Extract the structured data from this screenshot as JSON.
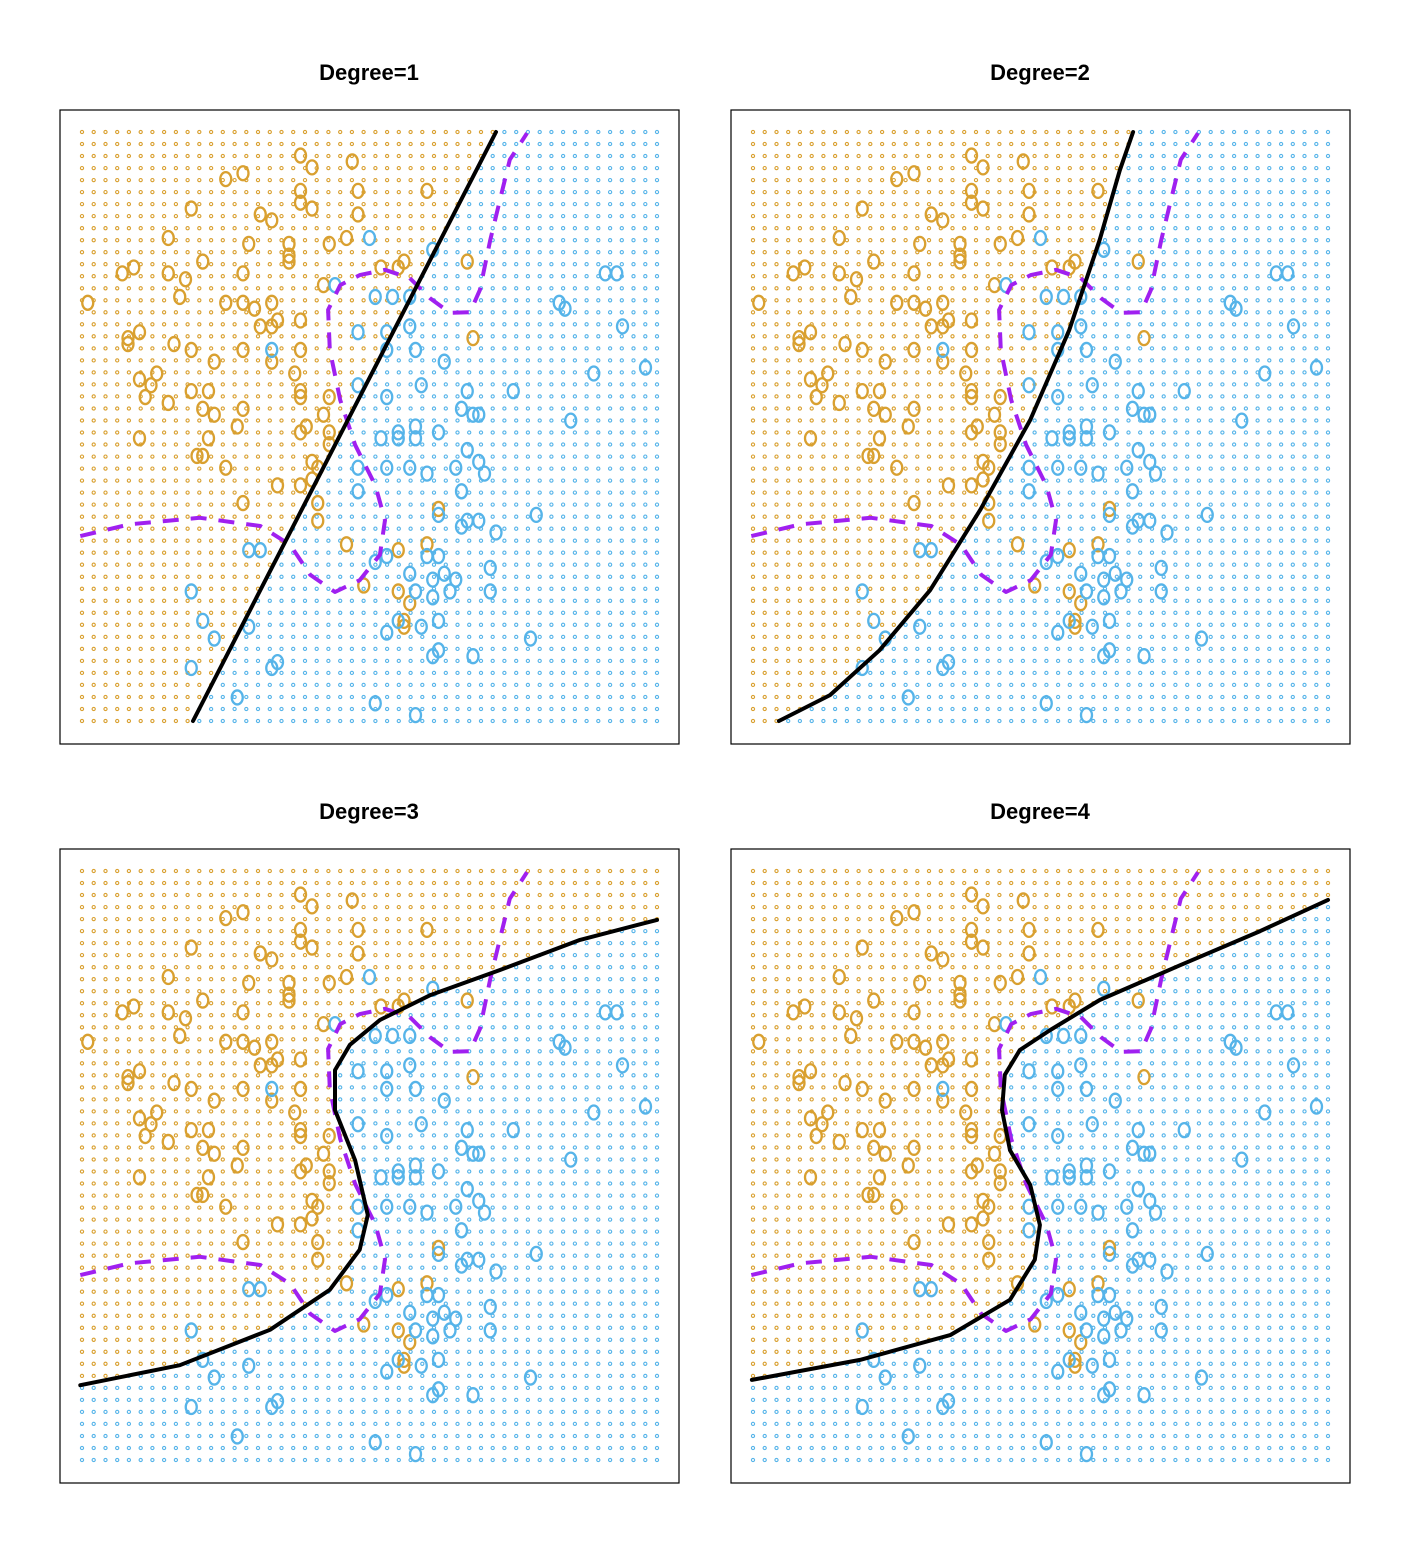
{
  "colors": {
    "orange": "#D9A030",
    "blue": "#56B4E9",
    "bayes": "#A020F0",
    "boundary": "#000000"
  },
  "chart_data": {
    "type": "scatter",
    "xlim": [
      0,
      100
    ],
    "ylim": [
      0,
      100
    ],
    "grid": {
      "nx": 50,
      "ny": 50
    },
    "classes": [
      {
        "name": "orange",
        "points": [
          [
            38,
            96
          ],
          [
            47,
            95
          ],
          [
            28,
            93
          ],
          [
            25,
            92
          ],
          [
            40,
            94
          ],
          [
            38,
            90
          ],
          [
            38,
            88
          ],
          [
            48,
            90
          ],
          [
            60,
            90
          ],
          [
            19,
            87
          ],
          [
            31,
            86
          ],
          [
            33,
            85
          ],
          [
            40,
            87
          ],
          [
            48,
            86
          ],
          [
            15,
            82
          ],
          [
            29,
            81
          ],
          [
            36,
            81
          ],
          [
            43,
            81
          ],
          [
            46,
            82
          ],
          [
            36,
            79
          ],
          [
            36,
            78
          ],
          [
            21,
            78
          ],
          [
            9,
            77
          ],
          [
            7,
            76
          ],
          [
            15,
            76
          ],
          [
            18,
            75
          ],
          [
            28,
            76
          ],
          [
            42,
            74
          ],
          [
            17,
            72
          ],
          [
            1,
            71
          ],
          [
            25,
            71
          ],
          [
            28,
            71
          ],
          [
            30,
            70
          ],
          [
            38,
            68
          ],
          [
            31,
            67
          ],
          [
            33,
            67
          ],
          [
            34,
            68
          ],
          [
            10,
            66
          ],
          [
            8,
            65
          ],
          [
            8,
            64
          ],
          [
            16,
            64
          ],
          [
            28,
            63
          ],
          [
            19,
            63
          ],
          [
            38,
            63
          ],
          [
            33,
            61
          ],
          [
            23,
            61
          ],
          [
            13,
            59
          ],
          [
            10,
            58
          ],
          [
            12,
            57
          ],
          [
            37,
            59
          ],
          [
            19,
            56
          ],
          [
            22,
            56
          ],
          [
            11,
            55
          ],
          [
            15,
            54
          ],
          [
            21,
            53
          ],
          [
            23,
            52
          ],
          [
            28,
            53
          ],
          [
            38,
            56
          ],
          [
            38,
            55
          ],
          [
            43,
            55
          ],
          [
            38,
            49
          ],
          [
            22,
            48
          ],
          [
            27,
            50
          ],
          [
            10,
            48
          ],
          [
            20,
            45
          ],
          [
            21,
            45
          ],
          [
            42,
            52
          ],
          [
            39,
            50
          ],
          [
            43,
            49
          ],
          [
            43,
            47
          ],
          [
            40,
            44
          ],
          [
            25,
            43
          ],
          [
            41,
            43
          ],
          [
            40,
            41
          ],
          [
            38,
            40
          ],
          [
            34,
            40
          ],
          [
            28,
            37
          ],
          [
            41,
            37
          ],
          [
            41,
            34
          ],
          [
            62,
            36
          ],
          [
            46,
            30
          ],
          [
            60,
            30
          ],
          [
            55,
            29
          ],
          [
            49,
            23
          ],
          [
            55,
            22
          ],
          [
            57,
            20
          ],
          [
            56,
            17
          ],
          [
            56,
            16
          ],
          [
            68,
            65
          ],
          [
            67,
            78
          ],
          [
            56,
            78
          ],
          [
            55,
            77
          ],
          [
            52,
            77
          ],
          [
            33,
            71
          ]
        ]
      },
      {
        "name": "blue",
        "points": [
          [
            50,
            82
          ],
          [
            61,
            80
          ],
          [
            44,
            74
          ],
          [
            51,
            72
          ],
          [
            54,
            72
          ],
          [
            57,
            72
          ],
          [
            91,
            76
          ],
          [
            93,
            76
          ],
          [
            83,
            71
          ],
          [
            84,
            70
          ],
          [
            94,
            67
          ],
          [
            48,
            66
          ],
          [
            53,
            66
          ],
          [
            57,
            67
          ],
          [
            33,
            63
          ],
          [
            53,
            63
          ],
          [
            58,
            63
          ],
          [
            63,
            61
          ],
          [
            89,
            59
          ],
          [
            98,
            60
          ],
          [
            48,
            57
          ],
          [
            53,
            55
          ],
          [
            59,
            57
          ],
          [
            67,
            56
          ],
          [
            75,
            56
          ],
          [
            66,
            53
          ],
          [
            68,
            52
          ],
          [
            69,
            52
          ],
          [
            85,
            51
          ],
          [
            52,
            48
          ],
          [
            55,
            49
          ],
          [
            55,
            48
          ],
          [
            58,
            50
          ],
          [
            58,
            48
          ],
          [
            62,
            49
          ],
          [
            67,
            46
          ],
          [
            48,
            43
          ],
          [
            53,
            43
          ],
          [
            57,
            43
          ],
          [
            60,
            42
          ],
          [
            65,
            43
          ],
          [
            69,
            44
          ],
          [
            70,
            42
          ],
          [
            48,
            39
          ],
          [
            66,
            39
          ],
          [
            62,
            35
          ],
          [
            66,
            33
          ],
          [
            67,
            34
          ],
          [
            69,
            34
          ],
          [
            79,
            35
          ],
          [
            72,
            32
          ],
          [
            29,
            29
          ],
          [
            31,
            29
          ],
          [
            53,
            28
          ],
          [
            51,
            27
          ],
          [
            57,
            25
          ],
          [
            60,
            28
          ],
          [
            62,
            28
          ],
          [
            63,
            25
          ],
          [
            61,
            24
          ],
          [
            65,
            24
          ],
          [
            71,
            26
          ],
          [
            19,
            22
          ],
          [
            58,
            22
          ],
          [
            61,
            21
          ],
          [
            64,
            22
          ],
          [
            71,
            22
          ],
          [
            21,
            17
          ],
          [
            53,
            15
          ],
          [
            55,
            17
          ],
          [
            59,
            16
          ],
          [
            62,
            17
          ],
          [
            78,
            14
          ],
          [
            23,
            14
          ],
          [
            62,
            12
          ],
          [
            61,
            11
          ],
          [
            68,
            11
          ],
          [
            19,
            9
          ],
          [
            33,
            9
          ],
          [
            27,
            4
          ],
          [
            51,
            3
          ],
          [
            58,
            1
          ],
          [
            29,
            16
          ],
          [
            34,
            10
          ]
        ]
      }
    ],
    "bayes_boundary": [
      [
        -0.3,
        31.4
      ],
      [
        8.3,
        33.4
      ],
      [
        20.5,
        34.5
      ],
      [
        31,
        33.1
      ],
      [
        36.2,
        29.9
      ],
      [
        39.7,
        24.8
      ],
      [
        44,
        21.9
      ],
      [
        48.3,
        23.9
      ],
      [
        51.8,
        28.2
      ],
      [
        52.7,
        34.1
      ],
      [
        51,
        40
      ],
      [
        47.5,
        46.9
      ],
      [
        44.9,
        54.5
      ],
      [
        43.1,
        63
      ],
      [
        42.8,
        69.8
      ],
      [
        44.9,
        74
      ],
      [
        48.3,
        75.7
      ],
      [
        52.7,
        76.6
      ],
      [
        57,
        75.2
      ],
      [
        60.5,
        71.8
      ],
      [
        64,
        69.3
      ],
      [
        67.5,
        69.4
      ],
      [
        69.2,
        73.2
      ],
      [
        71,
        81.7
      ],
      [
        72.7,
        88.5
      ],
      [
        74.4,
        95.3
      ],
      [
        77.4,
        99.8
      ]
    ],
    "panels": [
      {
        "title": "Degree=1",
        "degree": 1,
        "boundary": [
          [
            19.3,
            0
          ],
          [
            72,
            100
          ]
        ]
      },
      {
        "title": "Degree=2",
        "degree": 2,
        "boundary": [
          [
            4.5,
            0
          ],
          [
            13.4,
            4.4
          ],
          [
            22,
            12
          ],
          [
            30.8,
            22.2
          ],
          [
            39.5,
            35.8
          ],
          [
            48.2,
            51.1
          ],
          [
            55,
            66.4
          ],
          [
            60.3,
            81.7
          ],
          [
            63.8,
            93.5
          ],
          [
            66.1,
            100
          ]
        ]
      },
      {
        "title": "Degree=3",
        "degree": 3,
        "boundary": [
          [
            -0.3,
            12.7
          ],
          [
            17,
            16.1
          ],
          [
            32.7,
            22.1
          ],
          [
            43.1,
            28.9
          ],
          [
            48.3,
            35.7
          ],
          [
            49.7,
            41.6
          ],
          [
            47.5,
            50.9
          ],
          [
            44,
            59.4
          ],
          [
            44,
            66.2
          ],
          [
            46.6,
            70.5
          ],
          [
            51.8,
            74.7
          ],
          [
            60.5,
            78.9
          ],
          [
            72.7,
            83.2
          ],
          [
            86.6,
            88.3
          ],
          [
            100,
            91.7
          ]
        ]
      },
      {
        "title": "Degree=4",
        "degree": 4,
        "boundary": [
          [
            -0.2,
            13.6
          ],
          [
            18.6,
            17
          ],
          [
            34.3,
            21.2
          ],
          [
            44.7,
            27.2
          ],
          [
            49,
            34
          ],
          [
            49.9,
            39.9
          ],
          [
            48.2,
            46.7
          ],
          [
            44.7,
            52.6
          ],
          [
            43.3,
            59.4
          ],
          [
            43.8,
            65.4
          ],
          [
            46.4,
            69.6
          ],
          [
            51.7,
            73
          ],
          [
            60.3,
            78.1
          ],
          [
            74.3,
            84
          ],
          [
            88.2,
            89.8
          ],
          [
            100,
            95.1
          ]
        ]
      }
    ]
  }
}
